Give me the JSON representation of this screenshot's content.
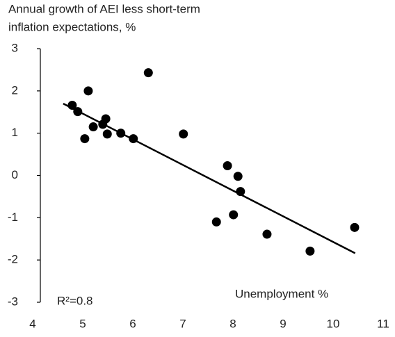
{
  "chart_data": {
    "type": "scatter",
    "title_lines": [
      "Annual growth of AEI less short-term",
      "inflation expectations, %"
    ],
    "x_label": "Unemployment %",
    "annotation": "R²=0.8",
    "x": [
      4.79,
      4.9,
      5.11,
      5.21,
      5.04,
      5.4,
      5.46,
      5.49,
      5.76,
      6.01,
      6.31,
      7.01,
      7.89,
      8.1,
      8.15,
      7.67,
      8.01,
      8.68,
      9.54,
      10.43
    ],
    "values": [
      1.66,
      1.51,
      2.0,
      1.15,
      0.87,
      1.21,
      1.34,
      0.98,
      1.0,
      0.87,
      2.43,
      0.98,
      0.23,
      -0.02,
      -0.38,
      -1.1,
      -0.93,
      -1.39,
      -1.79,
      -1.23
    ],
    "color": "#000000",
    "trendline": {
      "x": [
        4.61,
        10.44
      ],
      "y": [
        1.7,
        -1.84
      ]
    },
    "xlim": [
      4,
      11
    ],
    "xticks": [
      4,
      5,
      6,
      7,
      8,
      9,
      10,
      11
    ],
    "ylim": [
      -3,
      3
    ],
    "yticks": [
      -3,
      -2,
      -1,
      0,
      1,
      2,
      3
    ],
    "grid": false
  }
}
